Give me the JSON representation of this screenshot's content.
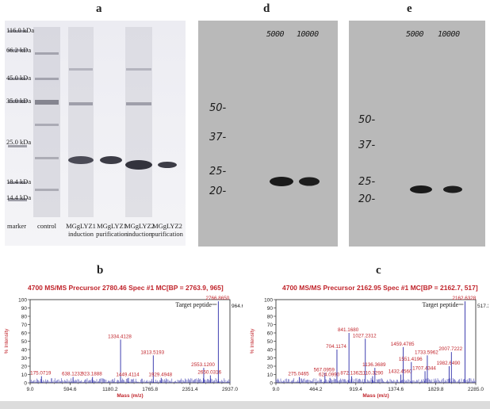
{
  "panels": {
    "a": "a",
    "d": "d",
    "e": "e",
    "b": "b",
    "c": "c"
  },
  "gel_a": {
    "mw_markers": [
      "116.0 kDa",
      "66.2 kDa",
      "45.0 kDa",
      "35.0 kDa",
      "25.0 kDa",
      "18.4 kDa",
      "14.4 kDa"
    ],
    "lanes": [
      {
        "line1": "marker",
        "line2": ""
      },
      {
        "line1": "control",
        "line2": ""
      },
      {
        "line1": "MGgLYZ1",
        "line2": "induction"
      },
      {
        "line1": "MGgLYZ1",
        "line2": "purification"
      },
      {
        "line1": "MGgLYZ2",
        "line2": "induction"
      },
      {
        "line1": "MGgLYZ2",
        "line2": "purification"
      }
    ]
  },
  "blot_d": {
    "top_labels": [
      "5000",
      "10000"
    ],
    "mw": [
      "50-",
      "37-",
      "25-",
      "20-"
    ]
  },
  "blot_e": {
    "top_labels": [
      "5000",
      "10000"
    ],
    "mw": [
      "50-",
      "37-",
      "25-",
      "20-"
    ]
  },
  "chart_data": [
    {
      "type": "line",
      "title": "4700 MS/MS Precursor 2780.46 Spec #1 MC[BP = 2763.9, 965]",
      "xlabel": "Mass (m/z)",
      "ylabel": "% Intensity",
      "xlim": [
        9.0,
        2937.0
      ],
      "ylim": [
        0,
        100
      ],
      "x_ticks": [
        "9.0",
        "594.6",
        "1180.2",
        "1765.8",
        "2351.4",
        "2937.0"
      ],
      "y_ticks": [
        "0",
        "10",
        "20",
        "30",
        "40",
        "50",
        "60",
        "70",
        "80",
        "90",
        "100"
      ],
      "right_value": "964.6",
      "annotation": "Target peptide",
      "peaks": [
        {
          "x": 175.0719,
          "y": 8,
          "label": "175.0719"
        },
        {
          "x": 638.1232,
          "y": 7,
          "label": "638.1232"
        },
        {
          "x": 923.1888,
          "y": 7,
          "label": "923.1888"
        },
        {
          "x": 1334.4128,
          "y": 52,
          "label": "1334.4128"
        },
        {
          "x": 1449.4114,
          "y": 6,
          "label": "1449.4114"
        },
        {
          "x": 1813.5193,
          "y": 33,
          "label": "1813.5193"
        },
        {
          "x": 1929.4948,
          "y": 6,
          "label": "1929.4948"
        },
        {
          "x": 2553.12,
          "y": 18,
          "label": "2553.1200"
        },
        {
          "x": 2650.0316,
          "y": 9,
          "label": "2650.0316"
        },
        {
          "x": 2766.865,
          "y": 98,
          "label": "2766.8650"
        }
      ]
    },
    {
      "type": "line",
      "title": "4700 MS/MS Precursor 2162.95 Spec #1 MC[BP = 2162.7, 517]",
      "xlabel": "Mass (m/z)",
      "ylabel": "% Intensity",
      "xlim": [
        9.0,
        2285.0
      ],
      "ylim": [
        0,
        100
      ],
      "x_ticks": [
        "9.0",
        "464.2",
        "919.4",
        "1374.6",
        "1829.8",
        "2285.0"
      ],
      "y_ticks": [
        "0",
        "10",
        "20",
        "30",
        "40",
        "50",
        "60",
        "70",
        "80",
        "90",
        "100"
      ],
      "right_value": "517.3",
      "annotation": "Target peptide",
      "peaks": [
        {
          "x": 275.0465,
          "y": 7,
          "label": "275.0465"
        },
        {
          "x": 567.0959,
          "y": 12,
          "label": "567.0959"
        },
        {
          "x": 624.099,
          "y": 6,
          "label": "624.0990"
        },
        {
          "x": 704.1174,
          "y": 40,
          "label": "704.1174"
        },
        {
          "x": 841.168,
          "y": 60,
          "label": "841.1680"
        },
        {
          "x": 872.1362,
          "y": 8,
          "label": "872.1362"
        },
        {
          "x": 1027.2312,
          "y": 53,
          "label": "1027.2312"
        },
        {
          "x": 1110.329,
          "y": 8,
          "label": "1110.3290"
        },
        {
          "x": 1136.3689,
          "y": 18,
          "label": "1136.3689"
        },
        {
          "x": 1432.456,
          "y": 10,
          "label": "1432.4560"
        },
        {
          "x": 1459.4785,
          "y": 43,
          "label": "1459.4785"
        },
        {
          "x": 1551.4196,
          "y": 25,
          "label": "1551.4196"
        },
        {
          "x": 1707.4344,
          "y": 14,
          "label": "1707.4344"
        },
        {
          "x": 1733.5962,
          "y": 33,
          "label": "1733.5962"
        },
        {
          "x": 1982.649,
          "y": 20,
          "label": "1982.6490"
        },
        {
          "x": 2007.7222,
          "y": 37,
          "label": "2007.7222"
        },
        {
          "x": 2162.6328,
          "y": 98,
          "label": "2162.6328"
        }
      ]
    }
  ]
}
